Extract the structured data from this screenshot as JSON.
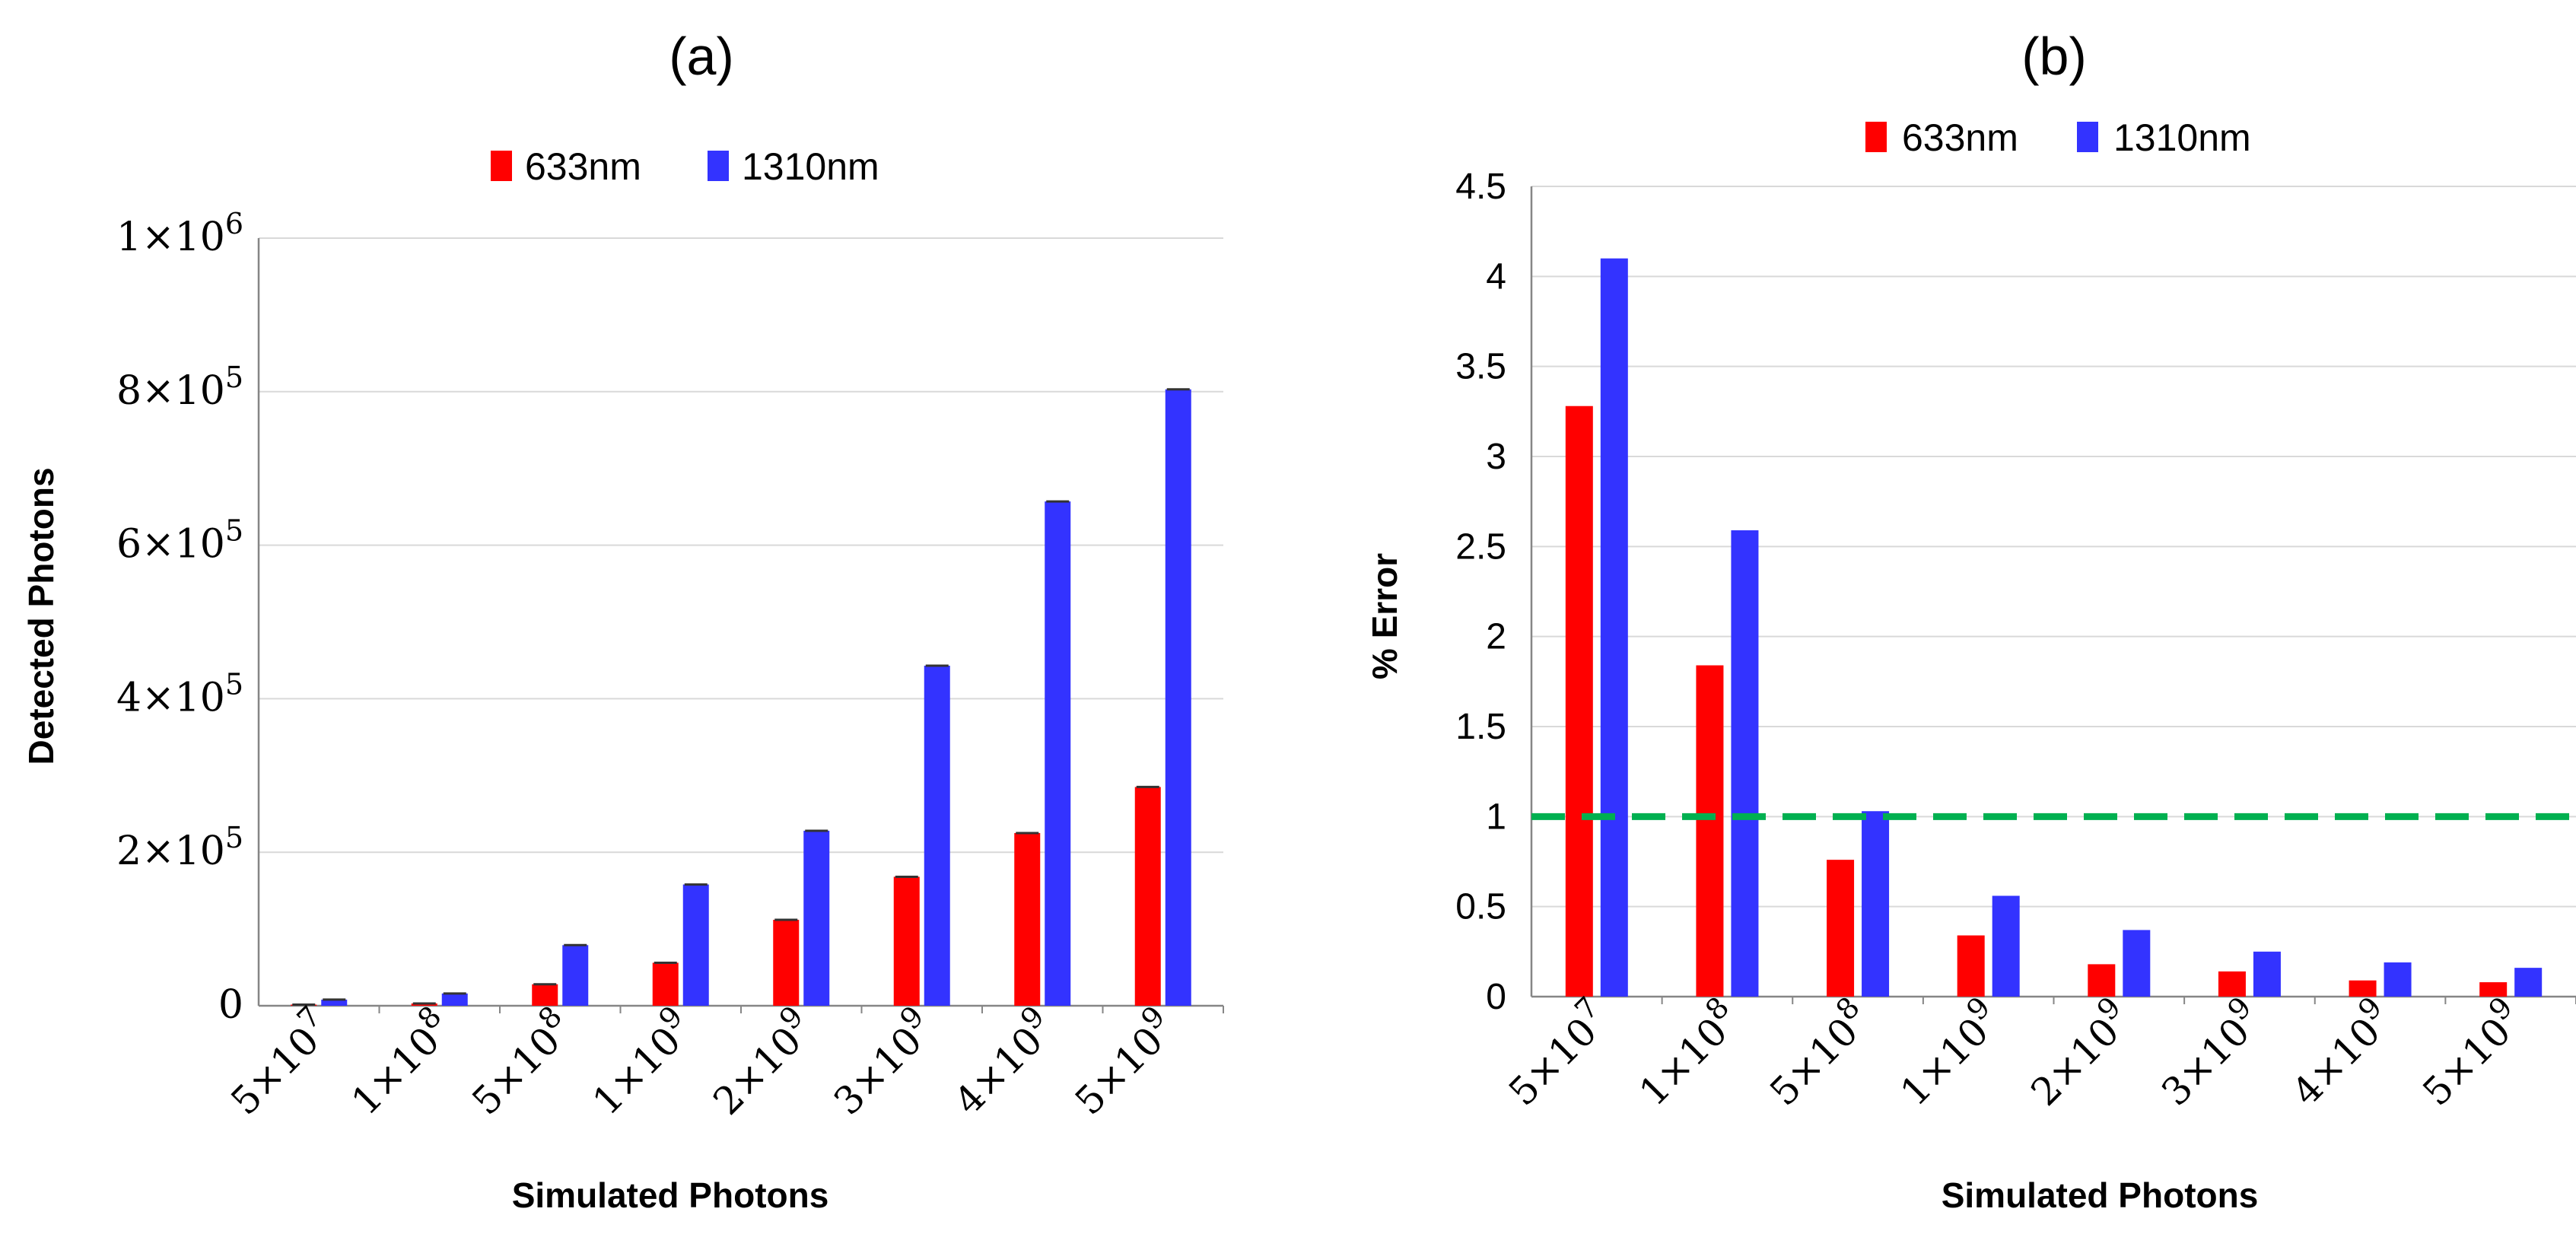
{
  "chart_data": [
    {
      "type": "bar",
      "title": "(a)",
      "xlabel": "Simulated Photons",
      "ylabel": "Detected Photons",
      "categories": [
        {
          "mant": "5×10",
          "exp": "7"
        },
        {
          "mant": "1×10",
          "exp": "8"
        },
        {
          "mant": "5×10",
          "exp": "8"
        },
        {
          "mant": "1×10",
          "exp": "9"
        },
        {
          "mant": "2×10",
          "exp": "9"
        },
        {
          "mant": "3×10",
          "exp": "9"
        },
        {
          "mant": "4×10",
          "exp": "9"
        },
        {
          "mant": "5×10",
          "exp": "9"
        }
      ],
      "series": [
        {
          "name": "633nm",
          "color": "#ff0000",
          "values": [
            1500,
            3000,
            28000,
            56000,
            112000,
            168000,
            225000,
            285000
          ]
        },
        {
          "name": "1310nm",
          "color": "#3333ff",
          "values": [
            8000,
            16000,
            79000,
            158000,
            228000,
            443000,
            657000,
            803000
          ]
        }
      ],
      "ylim": [
        0,
        1000000
      ],
      "yticks": [
        {
          "value": 0,
          "mant": "0",
          "exp": ""
        },
        {
          "value": 200000,
          "mant": "2×10",
          "exp": "5"
        },
        {
          "value": 400000,
          "mant": "4×10",
          "exp": "5"
        },
        {
          "value": 600000,
          "mant": "6×10",
          "exp": "5"
        },
        {
          "value": 800000,
          "mant": "8×10",
          "exp": "5"
        },
        {
          "value": 1000000,
          "mant": "1×10",
          "exp": "6"
        }
      ],
      "error_bars": true,
      "legend": "top"
    },
    {
      "type": "bar",
      "title": "(b)",
      "xlabel": "Simulated Photons",
      "ylabel": "% Error",
      "categories": [
        {
          "mant": "5×10",
          "exp": "7"
        },
        {
          "mant": "1×10",
          "exp": "8"
        },
        {
          "mant": "5×10",
          "exp": "8"
        },
        {
          "mant": "1×10",
          "exp": "9"
        },
        {
          "mant": "2×10",
          "exp": "9"
        },
        {
          "mant": "3×10",
          "exp": "9"
        },
        {
          "mant": "4×10",
          "exp": "9"
        },
        {
          "mant": "5×10",
          "exp": "9"
        }
      ],
      "series": [
        {
          "name": "633nm",
          "color": "#ff0000",
          "values": [
            3.28,
            1.84,
            0.76,
            0.34,
            0.18,
            0.14,
            0.09,
            0.08
          ]
        },
        {
          "name": "1310nm",
          "color": "#3333ff",
          "values": [
            4.1,
            2.59,
            1.03,
            0.56,
            0.37,
            0.25,
            0.19,
            0.16
          ]
        }
      ],
      "ylim": [
        0,
        4.5
      ],
      "yticks": [
        {
          "value": 0,
          "mant": "0",
          "exp": ""
        },
        {
          "value": 0.5,
          "mant": "0.5",
          "exp": ""
        },
        {
          "value": 1,
          "mant": "1",
          "exp": ""
        },
        {
          "value": 1.5,
          "mant": "1.5",
          "exp": ""
        },
        {
          "value": 2,
          "mant": "2",
          "exp": ""
        },
        {
          "value": 2.5,
          "mant": "2.5",
          "exp": ""
        },
        {
          "value": 3,
          "mant": "3",
          "exp": ""
        },
        {
          "value": 3.5,
          "mant": "3.5",
          "exp": ""
        },
        {
          "value": 4,
          "mant": "4",
          "exp": ""
        },
        {
          "value": 4.5,
          "mant": "4.5",
          "exp": ""
        }
      ],
      "reference_line": {
        "value": 1,
        "color": "#00b050",
        "style": "dashed"
      },
      "legend": "top"
    }
  ]
}
